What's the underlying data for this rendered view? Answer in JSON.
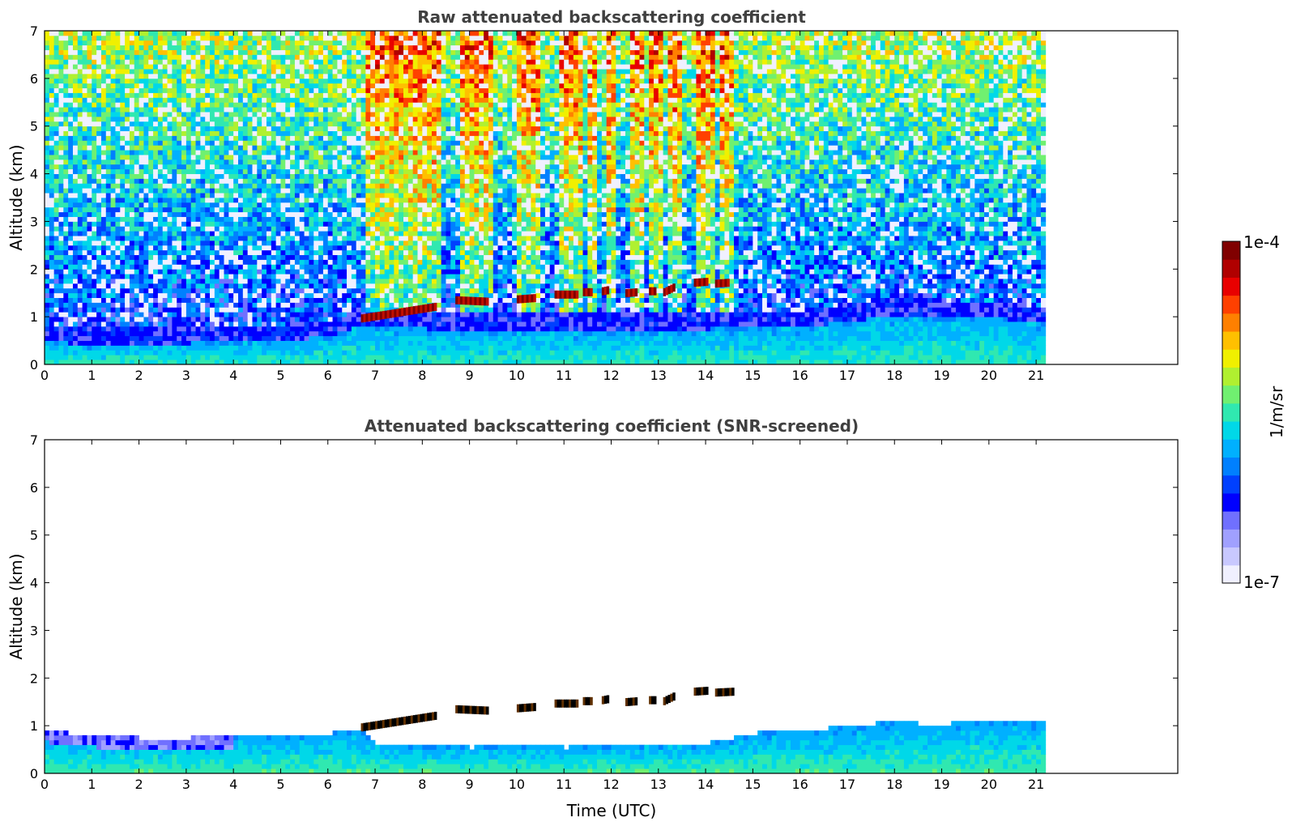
{
  "chart_data": [
    {
      "type": "heatmap",
      "title": "Raw attenuated backscattering coefficient",
      "xlabel": "",
      "ylabel": "Altitude (km)",
      "xlim": [
        0,
        24
      ],
      "ylim": [
        0,
        7
      ],
      "x_ticks": [
        0,
        1,
        2,
        3,
        4,
        5,
        6,
        7,
        8,
        9,
        10,
        11,
        12,
        13,
        14,
        15,
        16,
        17,
        18,
        19,
        20,
        21
      ],
      "y_ticks": [
        0,
        1,
        2,
        3,
        4,
        5,
        6,
        7
      ],
      "data_extent_time": [
        0,
        21.2
      ],
      "boundary_layer_top_km": [
        [
          0,
          0.42
        ],
        [
          1,
          0.38
        ],
        [
          2,
          0.37
        ],
        [
          3,
          0.4
        ],
        [
          4,
          0.42
        ],
        [
          5,
          0.45
        ],
        [
          6,
          0.55
        ],
        [
          6.6,
          0.75
        ],
        [
          8,
          0.7
        ],
        [
          10,
          0.65
        ],
        [
          12,
          0.65
        ],
        [
          14,
          0.7
        ],
        [
          16,
          0.75
        ],
        [
          17,
          0.85
        ],
        [
          18,
          1.0
        ],
        [
          19,
          0.95
        ],
        [
          20,
          0.95
        ],
        [
          21.2,
          0.8
        ]
      ],
      "cloud_segments": [
        {
          "t0": 6.7,
          "t1": 8.3,
          "alt_start": 0.95,
          "alt_end": 1.2
        },
        {
          "t0": 8.7,
          "t1": 9.4,
          "alt_start": 1.33,
          "alt_end": 1.3
        },
        {
          "t0": 10.0,
          "t1": 10.4,
          "alt_start": 1.35,
          "alt_end": 1.38
        },
        {
          "t0": 10.8,
          "t1": 11.3,
          "alt_start": 1.45,
          "alt_end": 1.45
        },
        {
          "t0": 11.4,
          "t1": 11.6,
          "alt_start": 1.5,
          "alt_end": 1.5
        },
        {
          "t0": 11.8,
          "t1": 11.95,
          "alt_start": 1.52,
          "alt_end": 1.55
        },
        {
          "t0": 12.3,
          "t1": 12.55,
          "alt_start": 1.48,
          "alt_end": 1.5
        },
        {
          "t0": 12.8,
          "t1": 12.95,
          "alt_start": 1.52,
          "alt_end": 1.52
        },
        {
          "t0": 13.1,
          "t1": 13.35,
          "alt_start": 1.5,
          "alt_end": 1.62
        },
        {
          "t0": 13.75,
          "t1": 14.05,
          "alt_start": 1.7,
          "alt_end": 1.72
        },
        {
          "t0": 14.2,
          "t1": 14.5,
          "alt_start": 1.68,
          "alt_end": 1.7
        }
      ],
      "noise_columns_time": [
        [
          6.7,
          8.3
        ],
        [
          8.7,
          9.4
        ],
        [
          9.9,
          10.4
        ],
        [
          10.8,
          11.3
        ],
        [
          11.4,
          11.6
        ],
        [
          11.8,
          12.0
        ],
        [
          12.3,
          12.6
        ],
        [
          12.75,
          13.0
        ],
        [
          13.1,
          13.4
        ],
        [
          13.7,
          14.1
        ],
        [
          14.2,
          14.5
        ]
      ]
    },
    {
      "type": "heatmap",
      "title": "Attenuated backscattering coefficient (SNR-screened)",
      "xlabel": "Time (UTC)",
      "ylabel": "Altitude (km)",
      "xlim": [
        0,
        24
      ],
      "ylim": [
        0,
        7
      ],
      "x_ticks": [
        0,
        1,
        2,
        3,
        4,
        5,
        6,
        7,
        8,
        9,
        10,
        11,
        12,
        13,
        14,
        15,
        16,
        17,
        18,
        19,
        20,
        21
      ],
      "y_ticks": [
        0,
        1,
        2,
        3,
        4,
        5,
        6,
        7
      ],
      "data_extent_time": [
        0,
        21.2
      ],
      "valid_signal_top_km": [
        [
          0,
          0.85
        ],
        [
          1,
          0.75
        ],
        [
          2,
          0.7
        ],
        [
          3,
          0.7
        ],
        [
          4,
          0.75
        ],
        [
          5,
          0.75
        ],
        [
          6,
          0.8
        ],
        [
          6.6,
          0.9
        ],
        [
          7,
          0.6
        ],
        [
          8,
          0.55
        ],
        [
          9,
          0.5
        ],
        [
          10,
          0.55
        ],
        [
          11,
          0.5
        ],
        [
          12,
          0.55
        ],
        [
          13,
          0.6
        ],
        [
          14,
          0.6
        ],
        [
          15,
          0.8
        ],
        [
          16,
          0.85
        ],
        [
          17,
          0.95
        ],
        [
          18,
          1.05
        ],
        [
          19,
          0.95
        ],
        [
          19.5,
          1.1
        ],
        [
          20.5,
          1.1
        ],
        [
          21.2,
          1.1
        ]
      ],
      "cloud_segments": [
        {
          "t0": 6.7,
          "t1": 8.3,
          "alt_start": 0.95,
          "alt_end": 1.2
        },
        {
          "t0": 8.7,
          "t1": 9.4,
          "alt_start": 1.33,
          "alt_end": 1.3
        },
        {
          "t0": 10.0,
          "t1": 10.4,
          "alt_start": 1.35,
          "alt_end": 1.38
        },
        {
          "t0": 10.8,
          "t1": 11.3,
          "alt_start": 1.45,
          "alt_end": 1.45
        },
        {
          "t0": 11.4,
          "t1": 11.6,
          "alt_start": 1.5,
          "alt_end": 1.5
        },
        {
          "t0": 11.8,
          "t1": 11.95,
          "alt_start": 1.52,
          "alt_end": 1.55
        },
        {
          "t0": 12.3,
          "t1": 12.55,
          "alt_start": 1.48,
          "alt_end": 1.5
        },
        {
          "t0": 12.8,
          "t1": 12.95,
          "alt_start": 1.52,
          "alt_end": 1.52
        },
        {
          "t0": 13.1,
          "t1": 13.35,
          "alt_start": 1.5,
          "alt_end": 1.62
        },
        {
          "t0": 13.75,
          "t1": 14.05,
          "alt_start": 1.7,
          "alt_end": 1.72
        },
        {
          "t0": 14.2,
          "t1": 14.6,
          "alt_start": 1.68,
          "alt_end": 1.7
        }
      ]
    }
  ],
  "colorbar": {
    "min_label": "1e-7",
    "max_label": "1e-4",
    "unit_label": "1/m/sr",
    "colors": [
      "#f0f0ff",
      "#c8c8ff",
      "#a0a0ff",
      "#7070ff",
      "#0000ff",
      "#0040ff",
      "#0080ff",
      "#00b0ff",
      "#00d8e8",
      "#30e8b0",
      "#70f070",
      "#b0f030",
      "#f0f000",
      "#ffc000",
      "#ff8000",
      "#ff4000",
      "#e80000",
      "#b00000",
      "#800000"
    ]
  }
}
